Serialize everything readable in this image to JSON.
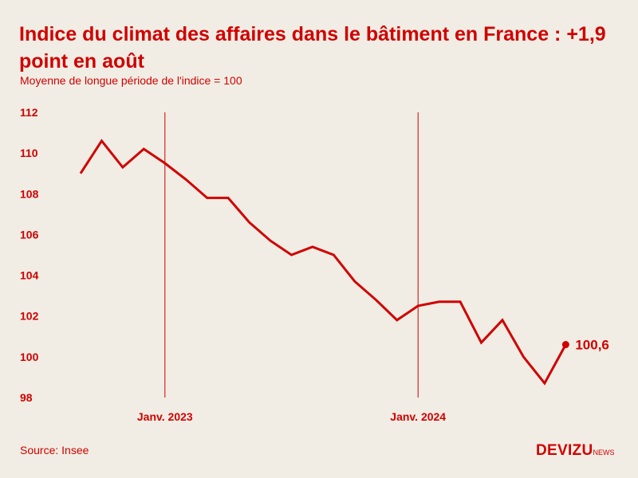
{
  "header": {
    "title": "Indice du climat des affaires dans le bâtiment en France : +1,9 point en août",
    "subtitle": "Moyenne de longue période de l'indice = 100"
  },
  "footer": {
    "source": "Source: Insee",
    "logo_main": "DEVIZU",
    "logo_suffix": "NEWS"
  },
  "colors": {
    "accent": "#d00000",
    "background": "#f1ede4"
  },
  "chart_data": {
    "type": "line",
    "title": "Indice du climat des affaires dans le bâtiment en France : +1,9 point en août",
    "subtitle": "Moyenne de longue période de l'indice = 100",
    "ylim": [
      98,
      112
    ],
    "yticks": [
      98,
      100,
      102,
      104,
      106,
      108,
      110,
      112
    ],
    "x_markers": [
      {
        "label": "Janv. 2023",
        "month_index": 4
      },
      {
        "label": "Janv. 2024",
        "month_index": 16
      }
    ],
    "series": [
      {
        "x": [
          "2022-09",
          "2022-10",
          "2022-11",
          "2022-12",
          "2023-01",
          "2023-02",
          "2023-03",
          "2023-04",
          "2023-05",
          "2023-06",
          "2023-07",
          "2023-08",
          "2023-09",
          "2023-10",
          "2023-11",
          "2023-12",
          "2024-01",
          "2024-02",
          "2024-03",
          "2024-04",
          "2024-05",
          "2024-06",
          "2024-07",
          "2024-08"
        ],
        "values": [
          109.0,
          110.6,
          109.3,
          110.2,
          109.5,
          108.7,
          107.8,
          107.8,
          106.6,
          105.7,
          105.0,
          105.4,
          105.0,
          103.7,
          102.8,
          101.8,
          102.5,
          102.7,
          102.7,
          100.7,
          101.8,
          100.0,
          98.7,
          100.6
        ]
      }
    ],
    "end_label": "100,6",
    "grid": false
  }
}
